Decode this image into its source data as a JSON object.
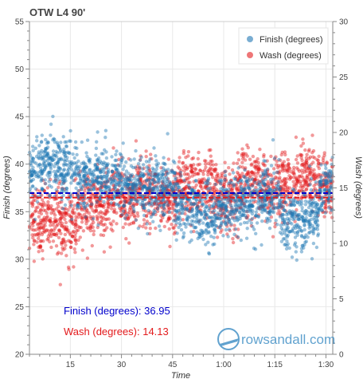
{
  "chart_data": {
    "type": "scatter",
    "title": "OTW L4 90'",
    "xlabel": "Time",
    "ylabel_left": "Finish (degrees)",
    "ylabel_right": "Wash (degrees)",
    "x_range_minutes": [
      3,
      92
    ],
    "x_ticks": [
      {
        "value": 15,
        "label": "15"
      },
      {
        "value": 30,
        "label": "30"
      },
      {
        "value": 45,
        "label": "45"
      },
      {
        "value": 60,
        "label": "1:00"
      },
      {
        "value": 75,
        "label": "1:15"
      },
      {
        "value": 90,
        "label": "1:30"
      }
    ],
    "y_left": {
      "range": [
        20,
        55
      ],
      "ticks": [
        20,
        25,
        30,
        35,
        40,
        45,
        50,
        55
      ]
    },
    "y_right": {
      "range": [
        0,
        30
      ],
      "ticks": [
        0,
        5,
        10,
        15,
        20,
        25,
        30
      ]
    },
    "grid": true,
    "legend": {
      "placement": "top-right"
    },
    "series": [
      {
        "name": "Finish (degrees)",
        "axis": "left",
        "color": "#1f77b4",
        "mean": 36.95,
        "segments": [
          {
            "start": 3,
            "end": 7,
            "mean": 39
          },
          {
            "start": 7,
            "end": 12,
            "mean": 40
          },
          {
            "start": 12,
            "end": 17,
            "mean": 39.5
          },
          {
            "start": 17,
            "end": 22,
            "mean": 38.5
          },
          {
            "start": 22,
            "end": 27,
            "mean": 39
          },
          {
            "start": 27,
            "end": 33,
            "mean": 38
          },
          {
            "start": 33,
            "end": 40,
            "mean": 37.5
          },
          {
            "start": 40,
            "end": 46,
            "mean": 37.5
          },
          {
            "start": 46,
            "end": 52,
            "mean": 35.5
          },
          {
            "start": 52,
            "end": 58,
            "mean": 34.5
          },
          {
            "start": 58,
            "end": 64,
            "mean": 35.5
          },
          {
            "start": 64,
            "end": 70,
            "mean": 36
          },
          {
            "start": 70,
            "end": 77,
            "mean": 36.5
          },
          {
            "start": 77,
            "end": 84,
            "mean": 34
          },
          {
            "start": 84,
            "end": 88,
            "mean": 34.5
          },
          {
            "start": 88,
            "end": 92,
            "mean": 37.5
          }
        ]
      },
      {
        "name": "Wash (degrees)",
        "axis": "right",
        "color": "#e31a1c",
        "mean": 14.13,
        "segments": [
          {
            "start": 3,
            "end": 7,
            "mean": 12
          },
          {
            "start": 7,
            "end": 12,
            "mean": 12.5
          },
          {
            "start": 12,
            "end": 17,
            "mean": 11.5
          },
          {
            "start": 17,
            "end": 22,
            "mean": 13
          },
          {
            "start": 22,
            "end": 27,
            "mean": 13.5
          },
          {
            "start": 27,
            "end": 33,
            "mean": 14
          },
          {
            "start": 33,
            "end": 40,
            "mean": 14.5
          },
          {
            "start": 40,
            "end": 46,
            "mean": 14
          },
          {
            "start": 46,
            "end": 52,
            "mean": 15
          },
          {
            "start": 52,
            "end": 58,
            "mean": 15
          },
          {
            "start": 58,
            "end": 64,
            "mean": 14
          },
          {
            "start": 64,
            "end": 70,
            "mean": 15.5
          },
          {
            "start": 70,
            "end": 77,
            "mean": 15
          },
          {
            "start": 77,
            "end": 84,
            "mean": 15.5
          },
          {
            "start": 84,
            "end": 88,
            "mean": 16
          },
          {
            "start": 88,
            "end": 92,
            "mean": 15
          }
        ]
      }
    ],
    "annotations": [
      {
        "text": "Finish (degrees): 36.95",
        "color": "#0000cc"
      },
      {
        "text": "Wash (degrees): 14.13",
        "color": "#e31a1c"
      }
    ]
  },
  "watermark": {
    "text_left": "rowsand",
    "text_right": "all.com"
  }
}
